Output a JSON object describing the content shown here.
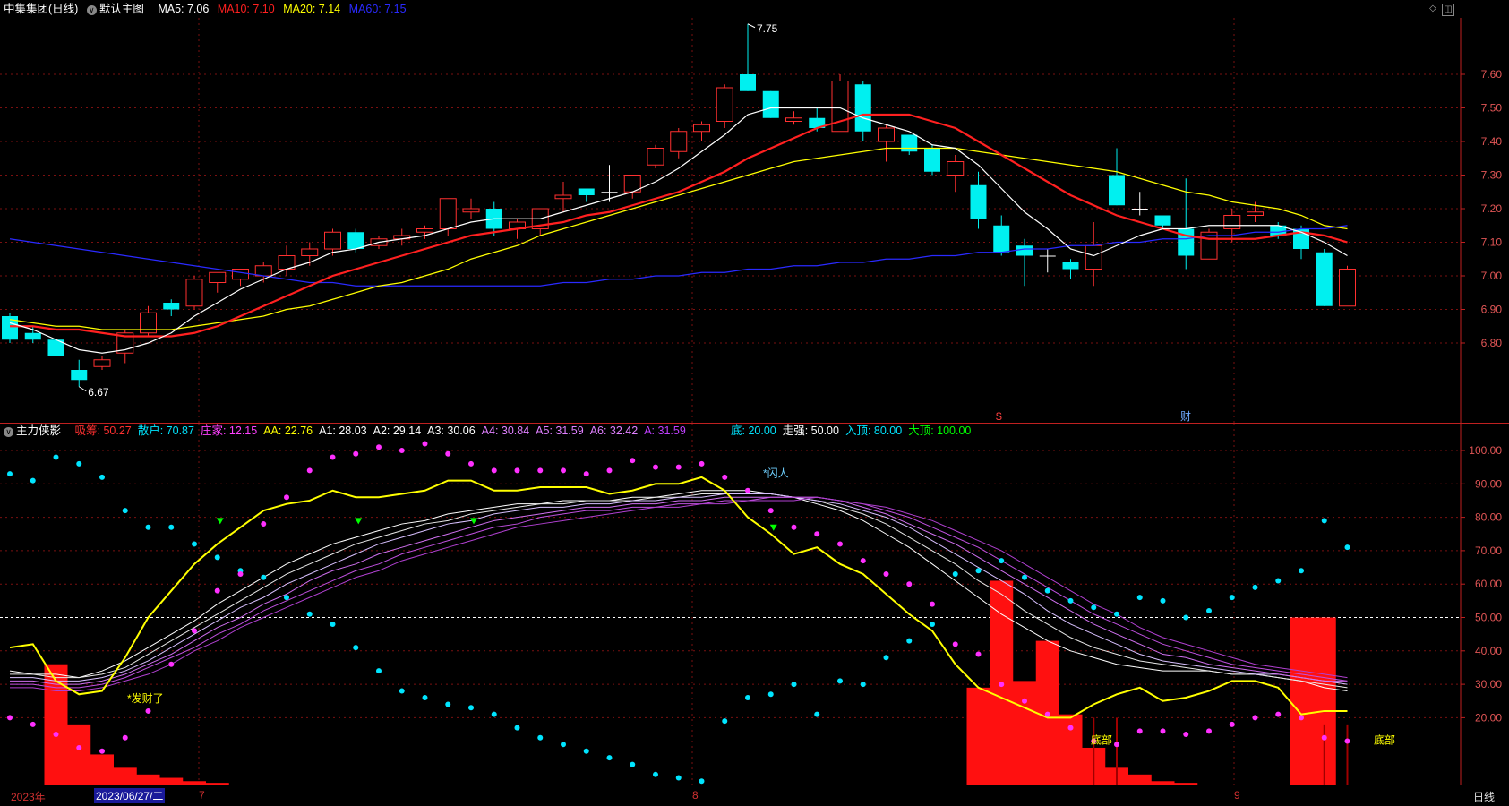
{
  "main_header": {
    "title": "中集集团(日线)",
    "template": "默认主图",
    "ma5": {
      "label": "MA5: 7.06",
      "color": "#ffffff"
    },
    "ma10": {
      "label": "MA10: 7.10",
      "color": "#ff2020"
    },
    "ma20": {
      "label": "MA20: 7.14",
      "color": "#ffff00"
    },
    "ma60": {
      "label": "MA60: 7.15",
      "color": "#2a2aff"
    }
  },
  "sub_header": {
    "title": "主力侠影",
    "items": [
      {
        "label": "吸筹: 50.27",
        "color": "#ff3030"
      },
      {
        "label": "散户: 70.87",
        "color": "#00e5ff"
      },
      {
        "label": "庄家: 12.15",
        "color": "#ff40ff"
      },
      {
        "label": "AA: 22.76",
        "color": "#ffff00"
      },
      {
        "label": "A1: 28.03",
        "color": "#ffffff"
      },
      {
        "label": "A2: 29.14",
        "color": "#ffffff"
      },
      {
        "label": "A3: 30.06",
        "color": "#ffffff"
      },
      {
        "label": "A4: 30.84",
        "color": "#e080ff"
      },
      {
        "label": "A5: 31.59",
        "color": "#e080ff"
      },
      {
        "label": "A6: 32.42",
        "color": "#e080ff"
      },
      {
        "label": "A: 31.59",
        "color": "#c040ff"
      }
    ],
    "items2": [
      {
        "label": "底: 20.00",
        "color": "#00e5ff"
      },
      {
        "label": "走强: 50.00",
        "color": "#ffffff"
      },
      {
        "label": "入顶: 80.00",
        "color": "#00e5ff"
      },
      {
        "label": "大顶: 100.00",
        "color": "#00ff00"
      }
    ]
  },
  "price_axis": [
    "7.60",
    "7.50",
    "7.40",
    "7.30",
    "7.20",
    "7.10",
    "7.00",
    "6.90",
    "6.80"
  ],
  "ind_axis": [
    "100.00",
    "90.00",
    "80.00",
    "70.00",
    "60.00",
    "50.00",
    "40.00",
    "30.00",
    "20.00"
  ],
  "annotations": {
    "high_label": "7.75",
    "low_label": "6.67",
    "fa_cai": "*发财了",
    "shan_ren": "*闪人",
    "di_bu_1": "底部",
    "di_bu_2": "底部",
    "marker_s": "$",
    "marker_cai": "财"
  },
  "date_bar": {
    "year": "2023年",
    "cursor_date": "2023/06/27/二",
    "month_7": "7",
    "month_8": "8",
    "month_9": "9",
    "period": "日线"
  },
  "colors": {
    "up": "#ff3030",
    "down": "#00f0f0",
    "grid": "#7a1010",
    "axis": "#c02020"
  },
  "chart_data": {
    "type": "candlestick",
    "ohlc": [
      [
        6.88,
        6.89,
        6.8,
        6.81
      ],
      [
        6.83,
        6.85,
        6.8,
        6.81
      ],
      [
        6.81,
        6.82,
        6.75,
        6.76
      ],
      [
        6.72,
        6.75,
        6.67,
        6.69
      ],
      [
        6.73,
        6.76,
        6.72,
        6.75
      ],
      [
        6.77,
        6.84,
        6.74,
        6.83
      ],
      [
        6.83,
        6.91,
        6.82,
        6.89
      ],
      [
        6.92,
        6.93,
        6.88,
        6.9
      ],
      [
        6.91,
        7.0,
        6.9,
        6.99
      ],
      [
        6.98,
        7.01,
        6.95,
        7.01
      ],
      [
        6.99,
        7.02,
        6.97,
        7.02
      ],
      [
        7.0,
        7.04,
        6.98,
        7.03
      ],
      [
        7.02,
        7.09,
        7.0,
        7.06
      ],
      [
        7.06,
        7.1,
        7.03,
        7.08
      ],
      [
        7.08,
        7.14,
        7.06,
        7.13
      ],
      [
        7.13,
        7.14,
        7.07,
        7.08
      ],
      [
        7.09,
        7.12,
        7.08,
        7.11
      ],
      [
        7.11,
        7.14,
        7.09,
        7.12
      ],
      [
        7.13,
        7.15,
        7.11,
        7.14
      ],
      [
        7.14,
        7.23,
        7.12,
        7.23
      ],
      [
        7.19,
        7.23,
        7.17,
        7.2
      ],
      [
        7.2,
        7.22,
        7.12,
        7.14
      ],
      [
        7.14,
        7.17,
        7.11,
        7.16
      ],
      [
        7.14,
        7.2,
        7.12,
        7.2
      ],
      [
        7.23,
        7.28,
        7.19,
        7.24
      ],
      [
        7.26,
        7.26,
        7.22,
        7.24
      ],
      [
        7.25,
        7.33,
        7.22,
        7.25
      ],
      [
        7.25,
        7.3,
        7.23,
        7.3
      ],
      [
        7.33,
        7.39,
        7.32,
        7.38
      ],
      [
        7.37,
        7.44,
        7.35,
        7.43
      ],
      [
        7.43,
        7.46,
        7.4,
        7.45
      ],
      [
        7.46,
        7.57,
        7.44,
        7.56
      ],
      [
        7.6,
        7.75,
        7.55,
        7.55
      ],
      [
        7.55,
        7.55,
        7.47,
        7.47
      ],
      [
        7.46,
        7.49,
        7.45,
        7.47
      ],
      [
        7.47,
        7.5,
        7.43,
        7.44
      ],
      [
        7.43,
        7.6,
        7.43,
        7.58
      ],
      [
        7.57,
        7.58,
        7.4,
        7.43
      ],
      [
        7.4,
        7.45,
        7.34,
        7.44
      ],
      [
        7.42,
        7.42,
        7.36,
        7.37
      ],
      [
        7.38,
        7.39,
        7.3,
        7.31
      ],
      [
        7.3,
        7.36,
        7.25,
        7.34
      ],
      [
        7.27,
        7.31,
        7.14,
        7.17
      ],
      [
        7.15,
        7.18,
        7.06,
        7.07
      ],
      [
        7.09,
        7.11,
        6.97,
        7.06
      ],
      [
        7.06,
        7.08,
        7.01,
        7.06
      ],
      [
        7.04,
        7.05,
        6.99,
        7.02
      ],
      [
        7.02,
        7.16,
        6.97,
        7.09
      ],
      [
        7.3,
        7.38,
        7.21,
        7.21
      ],
      [
        7.2,
        7.25,
        7.18,
        7.2
      ],
      [
        7.18,
        7.18,
        7.14,
        7.15
      ],
      [
        7.14,
        7.29,
        7.02,
        7.06
      ],
      [
        7.05,
        7.14,
        7.05,
        7.13
      ],
      [
        7.14,
        7.2,
        7.1,
        7.18
      ],
      [
        7.18,
        7.22,
        7.16,
        7.19
      ],
      [
        7.15,
        7.16,
        7.11,
        7.12
      ],
      [
        7.14,
        7.15,
        7.05,
        7.08
      ],
      [
        7.07,
        7.08,
        6.91,
        6.91
      ],
      [
        6.91,
        7.03,
        6.91,
        7.02
      ]
    ],
    "ma5": [
      6.86,
      6.84,
      6.81,
      6.78,
      6.77,
      6.78,
      6.8,
      6.83,
      6.88,
      6.92,
      6.96,
      6.99,
      7.02,
      7.04,
      7.07,
      7.08,
      7.1,
      7.11,
      7.12,
      7.14,
      7.16,
      7.17,
      7.17,
      7.17,
      7.19,
      7.21,
      7.23,
      7.25,
      7.28,
      7.32,
      7.37,
      7.42,
      7.48,
      7.5,
      7.5,
      7.5,
      7.5,
      7.47,
      7.45,
      7.43,
      7.39,
      7.38,
      7.33,
      7.26,
      7.19,
      7.14,
      7.08,
      7.06,
      7.09,
      7.12,
      7.14,
      7.14,
      7.15,
      7.15,
      7.15,
      7.15,
      7.13,
      7.1,
      7.06
    ],
    "ma10": [
      6.85,
      6.85,
      6.84,
      6.84,
      6.83,
      6.82,
      6.82,
      6.82,
      6.83,
      6.85,
      6.88,
      6.91,
      6.94,
      6.97,
      7.0,
      7.02,
      7.04,
      7.06,
      7.08,
      7.1,
      7.12,
      7.13,
      7.14,
      7.15,
      7.16,
      7.18,
      7.19,
      7.21,
      7.23,
      7.25,
      7.28,
      7.31,
      7.35,
      7.38,
      7.41,
      7.44,
      7.46,
      7.48,
      7.48,
      7.48,
      7.46,
      7.44,
      7.4,
      7.36,
      7.32,
      7.28,
      7.24,
      7.21,
      7.18,
      7.16,
      7.14,
      7.12,
      7.11,
      7.11,
      7.11,
      7.12,
      7.13,
      7.12,
      7.1
    ],
    "ma20": [
      6.87,
      6.86,
      6.85,
      6.85,
      6.84,
      6.84,
      6.84,
      6.84,
      6.85,
      6.86,
      6.87,
      6.88,
      6.9,
      6.91,
      6.93,
      6.95,
      6.97,
      6.98,
      7.0,
      7.02,
      7.05,
      7.07,
      7.09,
      7.12,
      7.14,
      7.16,
      7.18,
      7.2,
      7.22,
      7.24,
      7.26,
      7.28,
      7.3,
      7.32,
      7.34,
      7.35,
      7.36,
      7.37,
      7.38,
      7.38,
      7.38,
      7.38,
      7.37,
      7.36,
      7.35,
      7.34,
      7.33,
      7.32,
      7.31,
      7.29,
      7.27,
      7.25,
      7.24,
      7.22,
      7.21,
      7.2,
      7.18,
      7.15,
      7.14
    ],
    "ma60": [
      7.11,
      7.1,
      7.09,
      7.08,
      7.07,
      7.06,
      7.05,
      7.04,
      7.03,
      7.02,
      7.01,
      7.0,
      6.99,
      6.98,
      6.98,
      6.97,
      6.97,
      6.97,
      6.97,
      6.97,
      6.97,
      6.97,
      6.97,
      6.97,
      6.98,
      6.98,
      6.99,
      6.99,
      7.0,
      7.0,
      7.01,
      7.01,
      7.02,
      7.02,
      7.03,
      7.03,
      7.04,
      7.04,
      7.05,
      7.05,
      7.06,
      7.06,
      7.07,
      7.07,
      7.08,
      7.08,
      7.09,
      7.09,
      7.1,
      7.1,
      7.11,
      7.11,
      7.12,
      7.12,
      7.13,
      7.13,
      7.14,
      7.14,
      7.15
    ],
    "ind_yellow": [
      41,
      42,
      31,
      27,
      28,
      38,
      50,
      58,
      66,
      72,
      77,
      82,
      84,
      85,
      88,
      86,
      86,
      87,
      88,
      91,
      91,
      88,
      88,
      89,
      89,
      89,
      87,
      88,
      90,
      90,
      92,
      88,
      80,
      75,
      69,
      71,
      66,
      63,
      57,
      51,
      46,
      36,
      29,
      26,
      23,
      20,
      20,
      24,
      27,
      29,
      25,
      26,
      28,
      31,
      31,
      29,
      21,
      22,
      22
    ],
    "ind_lines": [
      [
        34,
        33,
        33,
        32,
        34,
        37,
        41,
        45,
        49,
        54,
        58,
        62,
        66,
        69,
        72,
        74,
        76,
        78,
        79,
        81,
        82,
        83,
        84,
        84,
        85,
        85,
        85,
        86,
        86,
        87,
        88,
        88,
        88,
        87,
        86,
        84,
        82,
        79,
        75,
        71,
        66,
        61,
        56,
        51,
        47,
        43,
        40,
        38,
        36,
        35,
        34,
        34,
        34,
        33,
        33,
        32,
        31,
        29,
        28
      ],
      [
        33,
        33,
        32,
        32,
        33,
        35,
        39,
        43,
        47,
        51,
        55,
        59,
        63,
        66,
        69,
        72,
        74,
        76,
        78,
        79,
        81,
        82,
        83,
        84,
        84,
        85,
        85,
        85,
        86,
        86,
        87,
        87,
        87,
        87,
        86,
        85,
        83,
        81,
        78,
        74,
        70,
        66,
        61,
        57,
        52,
        48,
        44,
        41,
        39,
        37,
        36,
        35,
        34,
        33,
        33,
        32,
        31,
        30,
        29
      ],
      [
        32,
        32,
        31,
        31,
        32,
        34,
        37,
        41,
        45,
        49,
        53,
        56,
        60,
        63,
        66,
        69,
        72,
        74,
        76,
        78,
        79,
        81,
        82,
        83,
        83,
        84,
        84,
        85,
        85,
        86,
        86,
        87,
        87,
        87,
        86,
        85,
        84,
        82,
        80,
        77,
        73,
        69,
        65,
        61,
        57,
        52,
        48,
        45,
        42,
        39,
        37,
        36,
        35,
        34,
        33,
        33,
        32,
        31,
        30
      ],
      [
        31,
        31,
        30,
        30,
        31,
        33,
        36,
        39,
        43,
        47,
        50,
        54,
        57,
        61,
        64,
        66,
        69,
        71,
        73,
        75,
        77,
        79,
        80,
        81,
        82,
        83,
        83,
        84,
        84,
        85,
        85,
        86,
        86,
        86,
        86,
        86,
        85,
        83,
        81,
        78,
        75,
        72,
        68,
        64,
        60,
        56,
        52,
        48,
        45,
        42,
        39,
        38,
        36,
        35,
        34,
        33,
        32,
        31,
        31
      ],
      [
        30,
        30,
        29,
        29,
        30,
        32,
        35,
        38,
        41,
        45,
        48,
        52,
        55,
        58,
        61,
        64,
        66,
        69,
        71,
        73,
        75,
        77,
        78,
        80,
        81,
        82,
        82,
        83,
        83,
        84,
        84,
        85,
        85,
        86,
        86,
        86,
        85,
        84,
        82,
        80,
        77,
        74,
        71,
        67,
        63,
        59,
        55,
        51,
        48,
        45,
        42,
        40,
        38,
        36,
        35,
        34,
        33,
        32,
        31
      ],
      [
        29,
        29,
        28,
        28,
        29,
        31,
        33,
        36,
        40,
        43,
        47,
        50,
        53,
        56,
        59,
        62,
        64,
        67,
        69,
        71,
        73,
        75,
        77,
        78,
        79,
        80,
        81,
        82,
        83,
        83,
        84,
        84,
        85,
        85,
        85,
        86,
        85,
        84,
        83,
        81,
        79,
        76,
        73,
        70,
        66,
        62,
        58,
        54,
        51,
        47,
        44,
        42,
        40,
        38,
        36,
        35,
        34,
        33,
        32
      ]
    ],
    "red_bars": [
      0,
      0,
      36,
      18,
      9,
      5,
      3,
      2,
      1,
      0.5,
      0,
      0,
      0,
      0,
      0,
      0,
      0,
      0,
      0,
      0,
      0,
      0,
      0,
      0,
      0,
      0,
      0,
      0,
      0,
      0,
      0,
      0,
      0,
      0,
      0,
      0,
      0,
      0,
      0,
      0,
      0,
      0,
      29,
      61,
      31,
      43,
      21,
      11,
      5,
      3,
      1,
      0.5,
      0,
      0,
      0,
      0,
      50,
      50,
      0
    ],
    "ylim": [
      6.6,
      7.8
    ],
    "ind_ylim": [
      0,
      105
    ]
  }
}
